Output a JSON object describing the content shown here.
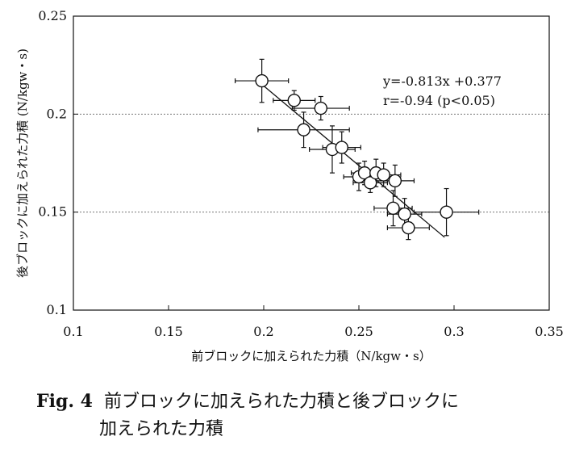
{
  "chart_data": {
    "type": "scatter",
    "xlabel": "前ブロックに加えられた力積（N/kgw・s）",
    "ylabel": "後ブロックに加えられた力積 (N/kgw・s)",
    "xlim": [
      0.1,
      0.35
    ],
    "ylim": [
      0.1,
      0.25
    ],
    "x_ticks": [
      "0.1",
      "0.15",
      "0.2",
      "0.25",
      "0.3",
      "0.35"
    ],
    "y_ticks": [
      "0.1",
      "0.15",
      "0.2",
      "0.25"
    ],
    "x_tick_values": [
      0.1,
      0.15,
      0.2,
      0.25,
      0.3,
      0.35
    ],
    "y_tick_values": [
      0.1,
      0.15,
      0.2,
      0.25
    ],
    "grid": "horizontal dotted at 0.15 and 0.2",
    "annotations": [
      "y=-0.813x  +0.377",
      "r=-0.94  (p<0.05)"
    ],
    "regression": {
      "slope": -0.813,
      "intercept": 0.377,
      "x_range": [
        0.2,
        0.295
      ]
    },
    "points": [
      {
        "x": 0.199,
        "y": 0.217,
        "xerr": 0.014,
        "yerr": 0.011
      },
      {
        "x": 0.216,
        "y": 0.207,
        "xerr": 0.011,
        "yerr": 0.005
      },
      {
        "x": 0.23,
        "y": 0.203,
        "xerr": 0.015,
        "yerr": 0.006
      },
      {
        "x": 0.221,
        "y": 0.192,
        "xerr": 0.024,
        "yerr": 0.009
      },
      {
        "x": 0.236,
        "y": 0.182,
        "xerr": 0.012,
        "yerr": 0.012
      },
      {
        "x": 0.241,
        "y": 0.183,
        "xerr": 0.01,
        "yerr": 0.008
      },
      {
        "x": 0.25,
        "y": 0.168,
        "xerr": 0.008,
        "yerr": 0.007
      },
      {
        "x": 0.253,
        "y": 0.17,
        "xerr": 0.007,
        "yerr": 0.006
      },
      {
        "x": 0.256,
        "y": 0.165,
        "xerr": 0.009,
        "yerr": 0.005
      },
      {
        "x": 0.259,
        "y": 0.17,
        "xerr": 0.006,
        "yerr": 0.007
      },
      {
        "x": 0.263,
        "y": 0.169,
        "xerr": 0.009,
        "yerr": 0.006
      },
      {
        "x": 0.269,
        "y": 0.166,
        "xerr": 0.01,
        "yerr": 0.008
      },
      {
        "x": 0.268,
        "y": 0.152,
        "xerr": 0.01,
        "yerr": 0.009
      },
      {
        "x": 0.274,
        "y": 0.149,
        "xerr": 0.009,
        "yerr": 0.008
      },
      {
        "x": 0.276,
        "y": 0.142,
        "xerr": 0.011,
        "yerr": 0.006
      },
      {
        "x": 0.296,
        "y": 0.15,
        "xerr": 0.017,
        "yerr": 0.012
      }
    ]
  },
  "caption": {
    "label": "Fig. 4",
    "line1": "前ブロックに加えられた力積と後ブロックに",
    "line2": "加えられた力積"
  }
}
